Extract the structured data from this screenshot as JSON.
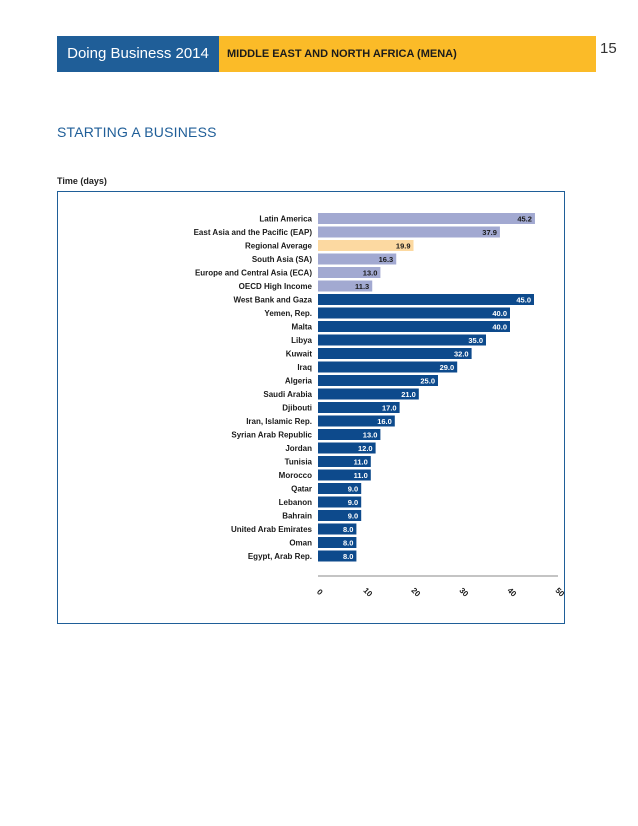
{
  "header": {
    "left_title": "Doing Business 2014",
    "right_title": "MIDDLE EAST AND NORTH AFRICA (MENA)",
    "page_number": "15"
  },
  "section": {
    "title": "STARTING A BUSINESS",
    "chart_label": "Time (days)"
  },
  "colors": {
    "header_blue": "#1f5e98",
    "header_gold": "#fbbb28",
    "region_bar": "#a2a9d1",
    "regional_average_bar": "#fcd9a1",
    "economy_bar": "#0d4a8c"
  },
  "chart_data": {
    "type": "bar",
    "orientation": "horizontal",
    "title": "Time (days)",
    "xlim": [
      0,
      50
    ],
    "ticks": [
      "0",
      "10",
      "20",
      "30",
      "40",
      "50"
    ],
    "grid": false,
    "categories": [
      "Latin America",
      "East Asia and the Pacific (EAP)",
      "Regional Average",
      "South Asia (SA)",
      "Europe and Central Asia (ECA)",
      "OECD High Income",
      "West Bank and Gaza",
      "Yemen, Rep.",
      "Malta",
      "Libya",
      "Kuwait",
      "Iraq",
      "Algeria",
      "Saudi Arabia",
      "Djibouti",
      "Iran, Islamic Rep.",
      "Syrian Arab Republic",
      "Jordan",
      "Tunisia",
      "Morocco",
      "Qatar",
      "Lebanon",
      "Bahrain",
      "United Arab Emirates",
      "Oman",
      "Egypt, Arab Rep."
    ],
    "values": [
      45.2,
      37.9,
      19.9,
      16.3,
      13.0,
      11.3,
      45.0,
      40.0,
      40.0,
      35.0,
      32.0,
      29.0,
      25.0,
      21.0,
      17.0,
      16.0,
      13.0,
      12.0,
      11.0,
      11.0,
      9.0,
      9.0,
      9.0,
      8.0,
      8.0,
      8.0
    ],
    "value_labels": [
      "45.2",
      "37.9",
      "19.9",
      "16.3",
      "13.0",
      "11.3",
      "45.0",
      "40.0",
      "40.0",
      "35.0",
      "32.0",
      "29.0",
      "25.0",
      "21.0",
      "17.0",
      "16.0",
      "13.0",
      "12.0",
      "11.0",
      "11.0",
      "9.0",
      "9.0",
      "9.0",
      "8.0",
      "8.0",
      "8.0"
    ],
    "bar_groups": [
      "region",
      "region",
      "average",
      "region",
      "region",
      "region",
      "economy",
      "economy",
      "economy",
      "economy",
      "economy",
      "economy",
      "economy",
      "economy",
      "economy",
      "economy",
      "economy",
      "economy",
      "economy",
      "economy",
      "economy",
      "economy",
      "economy",
      "economy",
      "economy",
      "economy"
    ]
  }
}
